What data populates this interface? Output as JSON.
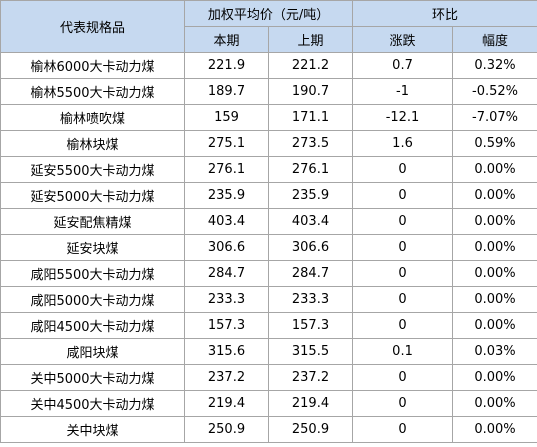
{
  "header": {
    "name_col": "代表规格品",
    "price_group": "加权平均价（元/吨）",
    "compare_group": "环比",
    "current": "本期",
    "previous": "上期",
    "change": "涨跌",
    "percent": "幅度"
  },
  "rows": [
    {
      "name": "榆林6000大卡动力煤",
      "current": "221.9",
      "previous": "221.2",
      "change": "0.7",
      "percent": "0.32%"
    },
    {
      "name": "榆林5500大卡动力煤",
      "current": "189.7",
      "previous": "190.7",
      "change": "-1",
      "percent": "-0.52%"
    },
    {
      "name": "榆林喷吹煤",
      "current": "159",
      "previous": "171.1",
      "change": "-12.1",
      "percent": "-7.07%"
    },
    {
      "name": "榆林块煤",
      "current": "275.1",
      "previous": "273.5",
      "change": "1.6",
      "percent": "0.59%"
    },
    {
      "name": "延安5500大卡动力煤",
      "current": "276.1",
      "previous": "276.1",
      "change": "0",
      "percent": "0.00%"
    },
    {
      "name": "延安5000大卡动力煤",
      "current": "235.9",
      "previous": "235.9",
      "change": "0",
      "percent": "0.00%"
    },
    {
      "name": "延安配焦精煤",
      "current": "403.4",
      "previous": "403.4",
      "change": "0",
      "percent": "0.00%"
    },
    {
      "name": "延安块煤",
      "current": "306.6",
      "previous": "306.6",
      "change": "0",
      "percent": "0.00%"
    },
    {
      "name": "咸阳5500大卡动力煤",
      "current": "284.7",
      "previous": "284.7",
      "change": "0",
      "percent": "0.00%"
    },
    {
      "name": "咸阳5000大卡动力煤",
      "current": "233.3",
      "previous": "233.3",
      "change": "0",
      "percent": "0.00%"
    },
    {
      "name": "咸阳4500大卡动力煤",
      "current": "157.3",
      "previous": "157.3",
      "change": "0",
      "percent": "0.00%"
    },
    {
      "name": "咸阳块煤",
      "current": "315.6",
      "previous": "315.5",
      "change": "0.1",
      "percent": "0.03%"
    },
    {
      "name": "关中5000大卡动力煤",
      "current": "237.2",
      "previous": "237.2",
      "change": "0",
      "percent": "0.00%"
    },
    {
      "name": "关中4500大卡动力煤",
      "current": "219.4",
      "previous": "219.4",
      "change": "0",
      "percent": "0.00%"
    },
    {
      "name": "关中块煤",
      "current": "250.9",
      "previous": "250.9",
      "change": "0",
      "percent": "0.00%"
    }
  ],
  "colors": {
    "header_bg": "#c6d9f0",
    "border": "#a6a6a6"
  }
}
